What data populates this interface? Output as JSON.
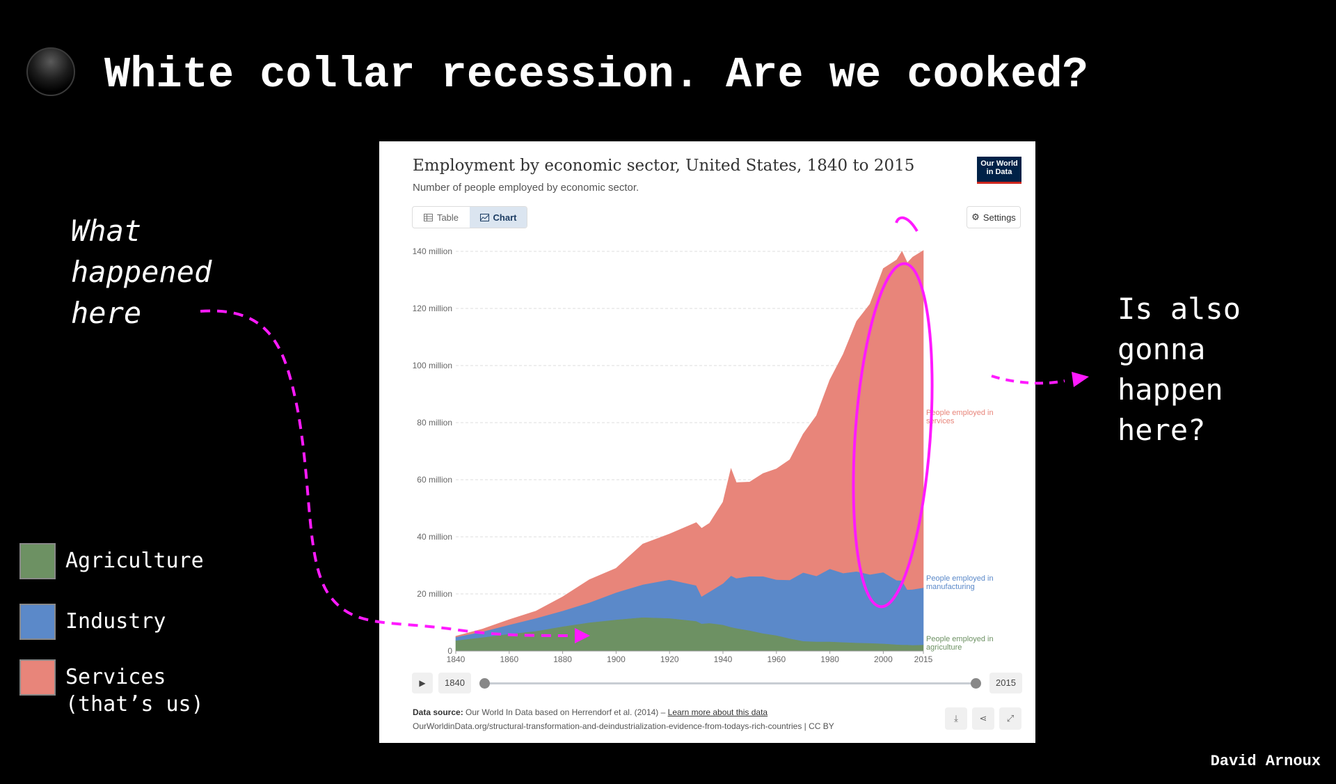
{
  "slide": {
    "title": "White collar recession. Are we cooked?",
    "note_left": [
      "What",
      "happened",
      "here"
    ],
    "note_right": [
      "Is also",
      "gonna",
      "happen",
      "here?"
    ],
    "author": "David Arnoux",
    "annotation_color": "#ff1aff"
  },
  "legend": [
    {
      "label": "Agriculture",
      "color": "#6d9163"
    },
    {
      "label": "Industry",
      "color": "#5b89c9"
    },
    {
      "label": "Services\n(that’s us)",
      "color": "#e8857a"
    }
  ],
  "card": {
    "title": "Employment by economic sector, United States, 1840 to 2015",
    "subtitle": "Number of people employed by economic sector.",
    "logo": [
      "Our World",
      "in Data"
    ],
    "tabs": {
      "table": "Table",
      "chart": "Chart"
    },
    "settings": "Settings",
    "timeline": {
      "start": "1840",
      "end": "2015"
    },
    "source_label": "Data source:",
    "source_text": "Our World In Data based on Herrendorf et al. (2014) –",
    "source_link": "Learn more about this data",
    "source_url": "OurWorldinData.org/structural-transformation-and-deindustrialization-evidence-from-todays-rich-countries | CC BY"
  },
  "chart_data": {
    "type": "area",
    "stacked": true,
    "title": "Employment by economic sector, United States, 1840 to 2015",
    "subtitle": "Number of people employed by economic sector.",
    "ylim": [
      0,
      140
    ],
    "xlim": [
      1840,
      2015
    ],
    "y_ticks": [
      "0",
      "20 million",
      "40 million",
      "60 million",
      "80 million",
      "100 million",
      "120 million",
      "140 million"
    ],
    "x_ticks": [
      "1840",
      "1860",
      "1880",
      "1900",
      "1920",
      "1940",
      "1960",
      "1980",
      "2000",
      "2015"
    ],
    "x": [
      1840,
      1850,
      1860,
      1870,
      1880,
      1890,
      1900,
      1910,
      1920,
      1930,
      1932,
      1935,
      1940,
      1943,
      1945,
      1950,
      1955,
      1960,
      1965,
      1970,
      1975,
      1980,
      1985,
      1990,
      1995,
      2000,
      2005,
      2007,
      2009,
      2011,
      2015
    ],
    "series": [
      {
        "name": "People employed in agriculture",
        "color": "#6d9163",
        "values": [
          3.7,
          4.8,
          6,
          7,
          8.6,
          10,
          11,
          11.8,
          11.5,
          10.5,
          9.6,
          9.8,
          9.2,
          8.4,
          8,
          7.2,
          6.2,
          5.5,
          4.4,
          3.5,
          3.3,
          3.3,
          3.1,
          2.9,
          2.8,
          2.6,
          2.3,
          2.2,
          2.2,
          2.1,
          2.2
        ]
      },
      {
        "name": "People employed in manufacturing",
        "color": "#5b89c9",
        "values": [
          1.2,
          2,
          3.2,
          4.5,
          5.5,
          7,
          9.5,
          11.5,
          13.5,
          12.5,
          9.5,
          11,
          14.5,
          18,
          17.5,
          19,
          20,
          19.5,
          20.5,
          24,
          23,
          25.5,
          24.2,
          25,
          24,
          25,
          22.5,
          22.5,
          19.3,
          19.5,
          20
        ]
      },
      {
        "name": "People employed in services",
        "color": "#e8857a",
        "values": [
          0.3,
          0.9,
          1.8,
          2.5,
          4.9,
          8,
          8.5,
          14.2,
          16,
          22,
          23.9,
          24,
          28.5,
          37.5,
          33.5,
          33,
          36,
          38.8,
          42.1,
          48.5,
          56.2,
          66.2,
          76.7,
          87.6,
          94.7,
          106.4,
          112.2,
          115.3,
          114.5,
          116.4,
          118.1
        ]
      }
    ]
  }
}
